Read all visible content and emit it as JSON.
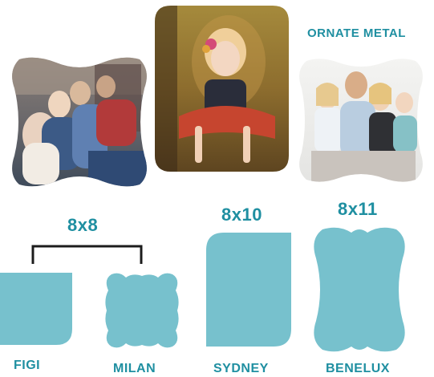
{
  "product_title": "ORNATE METAL",
  "accent_color": "#77C1CD",
  "label_color": "#1F8FA1",
  "photos": [
    {
      "id": "family-sitting",
      "shape": "bracket-ornate"
    },
    {
      "id": "girl-on-chair",
      "shape": "rounded-corners"
    },
    {
      "id": "family-portrait",
      "shape": "bracket-ornate"
    }
  ],
  "groups": [
    {
      "size_label": "8x8",
      "shapes": [
        "FIGI",
        "MILAN"
      ]
    },
    {
      "size_label": "8x10",
      "shapes": [
        "SYDNEY"
      ]
    },
    {
      "size_label": "8x11",
      "shapes": [
        "BENELUX"
      ]
    }
  ]
}
